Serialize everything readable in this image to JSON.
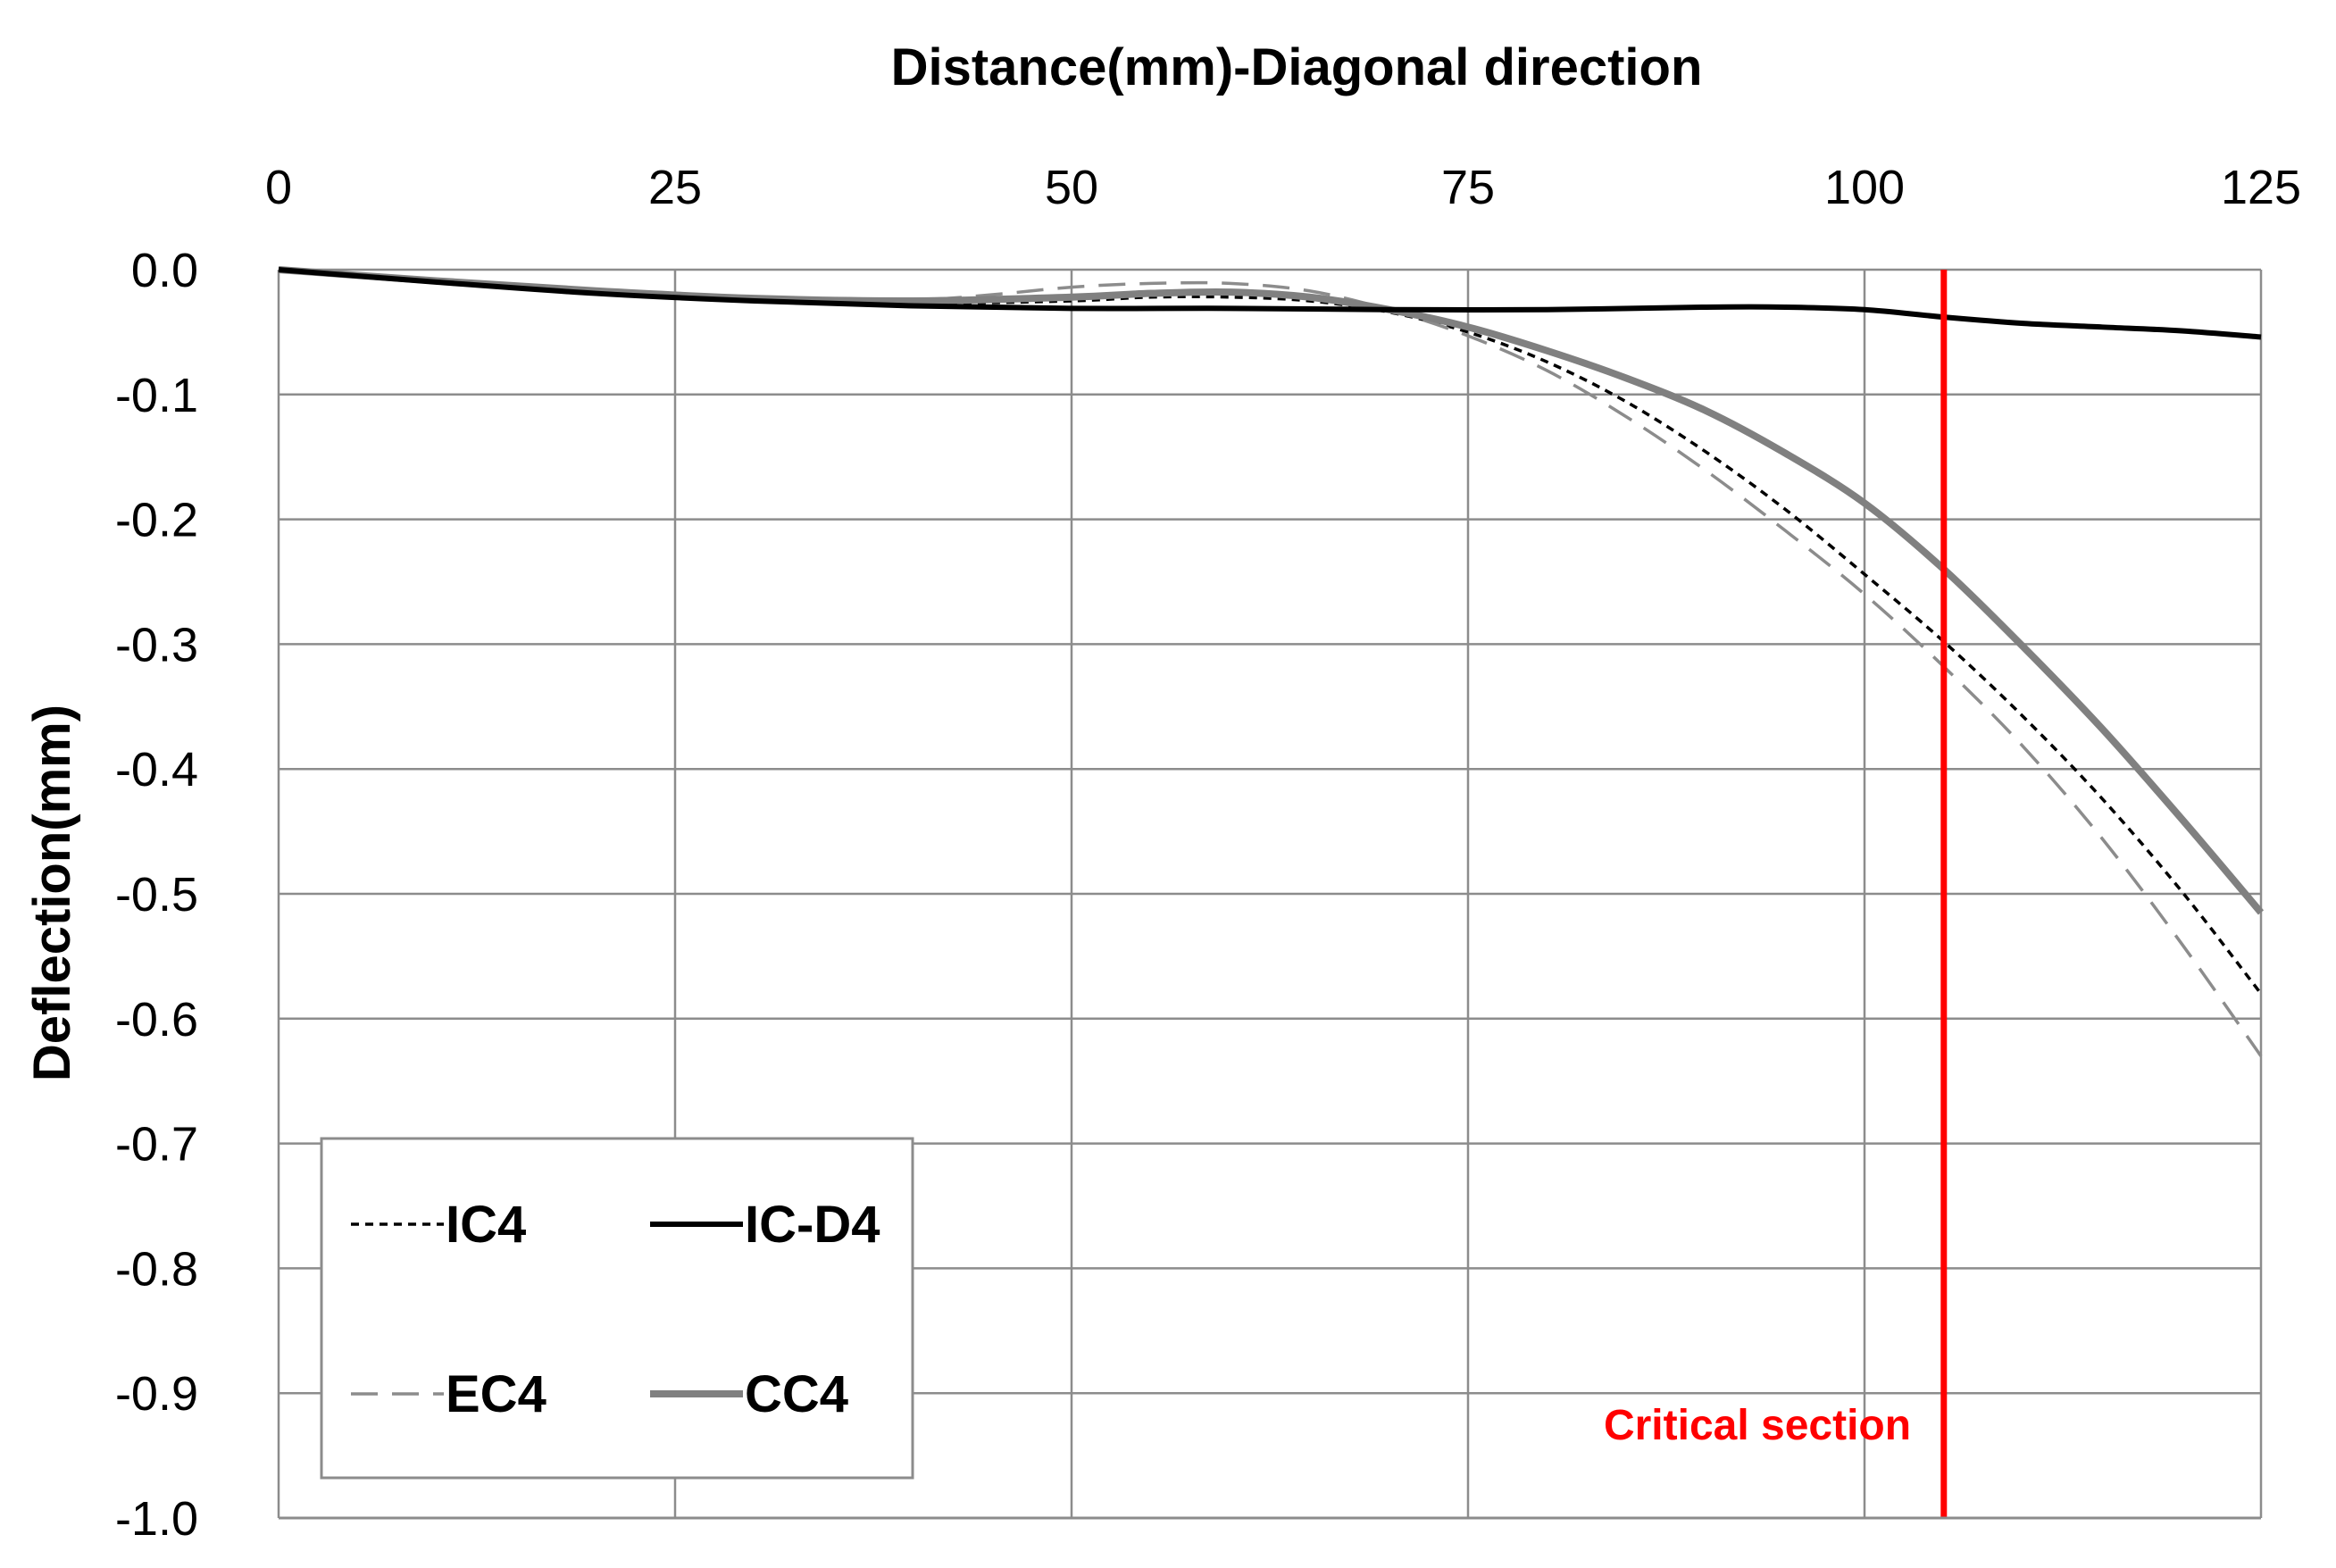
{
  "chart_data": {
    "type": "line",
    "title": "",
    "xlabel": "Distance(mm)-Diagonal direction",
    "ylabel": "Deflection(mm)",
    "xlim": [
      0,
      125
    ],
    "ylim": [
      -1.0,
      0.0
    ],
    "x_ticks": [
      0,
      25,
      50,
      75,
      100,
      125
    ],
    "x_tick_labels": [
      "0",
      "25",
      "50",
      "75",
      "100",
      "125"
    ],
    "y_ticks": [
      0.0,
      -0.1,
      -0.2,
      -0.3,
      -0.4,
      -0.5,
      -0.6,
      -0.7,
      -0.8,
      -0.9,
      -1.0
    ],
    "y_tick_labels": [
      "0.0",
      "-0.1",
      "-0.2",
      "-0.3",
      "-0.4",
      "-0.5",
      "-0.6",
      "-0.7",
      "-0.8",
      "-0.9",
      "-1.0"
    ],
    "x_axis_position": "top",
    "grid": true,
    "legend_position": "bottom-left",
    "series": [
      {
        "name": "IC4",
        "style": "dotted",
        "color": "#000000",
        "x": [
          0,
          10,
          20,
          30,
          40,
          50,
          55,
          60,
          65,
          70,
          75,
          80,
          85,
          90,
          95,
          100,
          105,
          110,
          115,
          120,
          125
        ],
        "y": [
          0,
          -0.009,
          -0.018,
          -0.024,
          -0.027,
          -0.025,
          -0.022,
          -0.022,
          -0.025,
          -0.034,
          -0.05,
          -0.074,
          -0.106,
          -0.146,
          -0.192,
          -0.244,
          -0.298,
          -0.358,
          -0.424,
          -0.498,
          -0.58
        ]
      },
      {
        "name": "IC-D4",
        "style": "solid",
        "color": "#000000",
        "x": [
          0,
          10,
          20,
          30,
          40,
          50,
          60,
          70,
          80,
          90,
          95,
          100,
          105,
          110,
          115,
          120,
          125
        ],
        "y": [
          0,
          -0.01,
          -0.019,
          -0.025,
          -0.029,
          -0.031,
          -0.031,
          -0.032,
          -0.032,
          -0.03,
          -0.03,
          -0.032,
          -0.038,
          -0.043,
          -0.046,
          -0.049,
          -0.054
        ]
      },
      {
        "name": "EC4",
        "style": "dashed",
        "color": "#8c8c8c",
        "x": [
          0,
          10,
          20,
          30,
          40,
          45,
          50,
          55,
          60,
          65,
          70,
          75,
          80,
          85,
          90,
          95,
          100,
          105,
          110,
          115,
          120,
          125
        ],
        "y": [
          0,
          -0.009,
          -0.018,
          -0.023,
          -0.024,
          -0.02,
          -0.014,
          -0.011,
          -0.011,
          -0.017,
          -0.032,
          -0.053,
          -0.081,
          -0.118,
          -0.161,
          -0.209,
          -0.26,
          -0.318,
          -0.382,
          -0.456,
          -0.54,
          -0.63
        ]
      },
      {
        "name": "CC4",
        "style": "solid-thick",
        "color": "#808080",
        "x": [
          0,
          10,
          20,
          30,
          40,
          50,
          55,
          60,
          65,
          70,
          75,
          80,
          85,
          90,
          95,
          100,
          105,
          110,
          115,
          120,
          125
        ],
        "y": [
          0,
          -0.009,
          -0.017,
          -0.023,
          -0.025,
          -0.022,
          -0.019,
          -0.018,
          -0.022,
          -0.032,
          -0.046,
          -0.065,
          -0.087,
          -0.113,
          -0.147,
          -0.187,
          -0.24,
          -0.302,
          -0.368,
          -0.44,
          -0.515
        ]
      }
    ],
    "annotations": [
      {
        "label": "Critical section",
        "type": "vertical-line",
        "x": 105,
        "color": "#ff0000"
      }
    ]
  }
}
